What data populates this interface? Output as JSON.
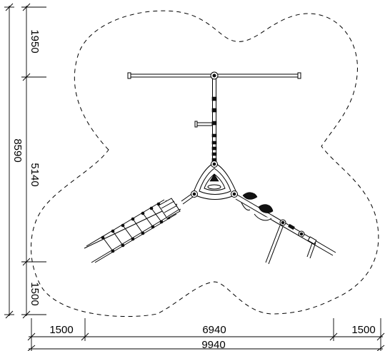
{
  "dimensions": {
    "vertical": {
      "total": "8590",
      "top": "1950",
      "middle": "5140",
      "bottom": "1500"
    },
    "horizontal": {
      "total": "9940",
      "left": "1500",
      "middle": "6940",
      "right": "1500"
    }
  },
  "colors": {
    "line": "#000000",
    "background": "#ffffff"
  }
}
